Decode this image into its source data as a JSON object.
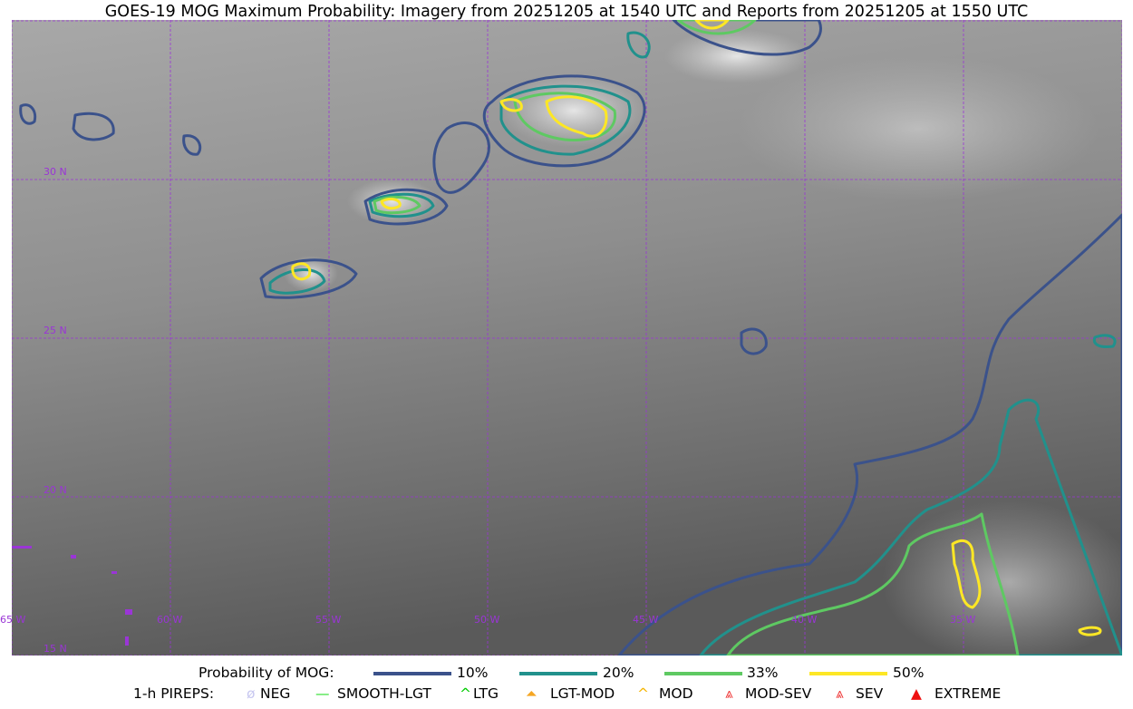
{
  "title": "GOES-19 MOG Maximum Probability: Imagery from 20251205 at 1540 UTC and Reports from 20251205 at 1550 UTC",
  "map": {
    "lat_labels": [
      "30 N",
      "25 N",
      "20 N",
      "15 N"
    ],
    "lon_labels": [
      "65 W",
      "60 W",
      "55 W",
      "50 W",
      "45 W",
      "40 W",
      "35 W"
    ],
    "grid_color": "#9a35d6",
    "extent": {
      "lon": [
        -65,
        -30
      ],
      "lat": [
        15,
        35
      ]
    }
  },
  "legend": {
    "prob_title": "Probability of MOG:",
    "prob_items": [
      {
        "label": "10%",
        "color": "#3b528b"
      },
      {
        "label": "20%",
        "color": "#21918c"
      },
      {
        "label": "33%",
        "color": "#5ec962"
      },
      {
        "label": "50%",
        "color": "#fde725"
      }
    ],
    "pirep_title": "1-h PIREPS:",
    "pirep_items": [
      {
        "label": "NEG",
        "color": "#c8c8f0",
        "icon": "neg-icon"
      },
      {
        "label": "SMOOTH-LGT",
        "color": "#22dd22",
        "icon": "smooth-light-icon"
      },
      {
        "label": "LTG",
        "color": "#00cc00",
        "icon": "light-icon"
      },
      {
        "label": "LGT-MOD",
        "color": "#f5a623",
        "icon": "light-moderate-icon"
      },
      {
        "label": "MOD",
        "color": "#f5b400",
        "icon": "moderate-icon"
      },
      {
        "label": "MOD-SEV",
        "color": "#ee3333",
        "icon": "moderate-severe-icon"
      },
      {
        "label": "SEV",
        "color": "#ee3333",
        "icon": "severe-icon"
      },
      {
        "label": "EXTREME",
        "color": "#ee1111",
        "icon": "extreme-icon"
      }
    ]
  }
}
